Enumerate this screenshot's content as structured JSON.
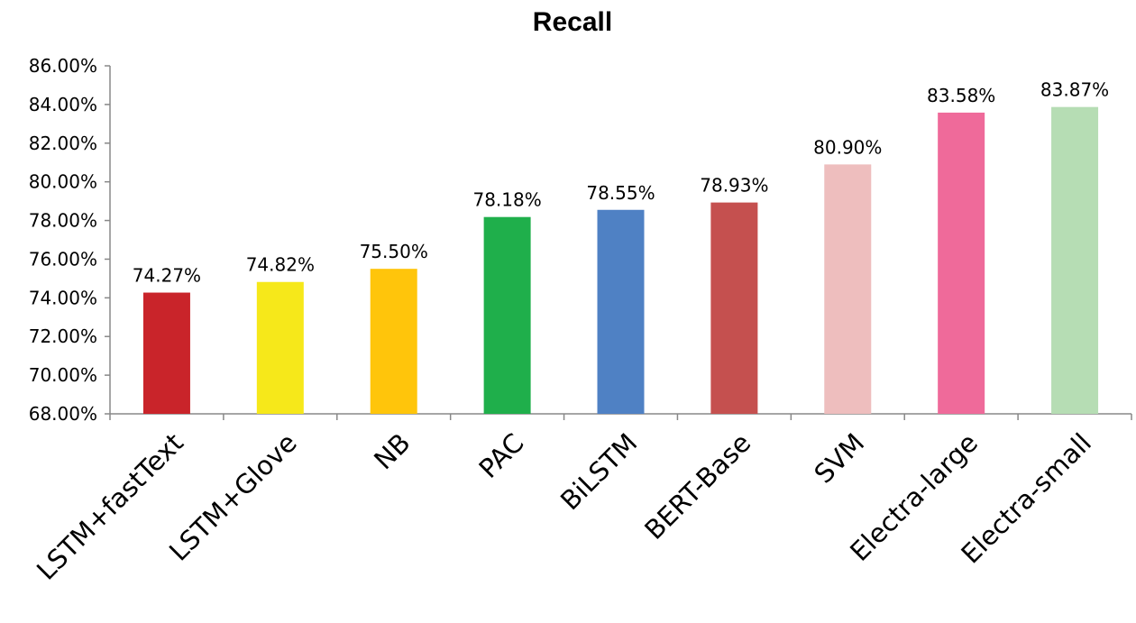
{
  "chart_data": {
    "type": "bar",
    "title": "Recall",
    "xlabel": "",
    "ylabel": "",
    "categories": [
      "LSTM+fastText",
      "LSTM+Glove",
      "NB",
      "PAC",
      "BiLSTM",
      "BERT-Base",
      "SVM",
      "Electra-large",
      "Electra-small"
    ],
    "values": [
      74.27,
      74.82,
      75.5,
      78.18,
      78.55,
      78.93,
      80.9,
      83.58,
      83.87
    ],
    "value_labels": [
      "74.27%",
      "74.82%",
      "75.50%",
      "78.18%",
      "78.55%",
      "78.93%",
      "80.90%",
      "83.58%",
      "83.87%"
    ],
    "colors": [
      "#C9242A",
      "#F6E81A",
      "#FFC50B",
      "#1FAF4B",
      "#4F81C4",
      "#C5504F",
      "#EEBEBE",
      "#EF6A9A",
      "#B6DDB4"
    ],
    "ylim": [
      68,
      86
    ],
    "yticks": [
      68,
      70,
      72,
      74,
      76,
      78,
      80,
      82,
      84,
      86
    ],
    "ytick_labels": [
      "68.00%",
      "70.00%",
      "72.00%",
      "74.00%",
      "76.00%",
      "78.00%",
      "80.00%",
      "82.00%",
      "84.00%",
      "86.00%"
    ],
    "grid": false,
    "legend": "none"
  }
}
